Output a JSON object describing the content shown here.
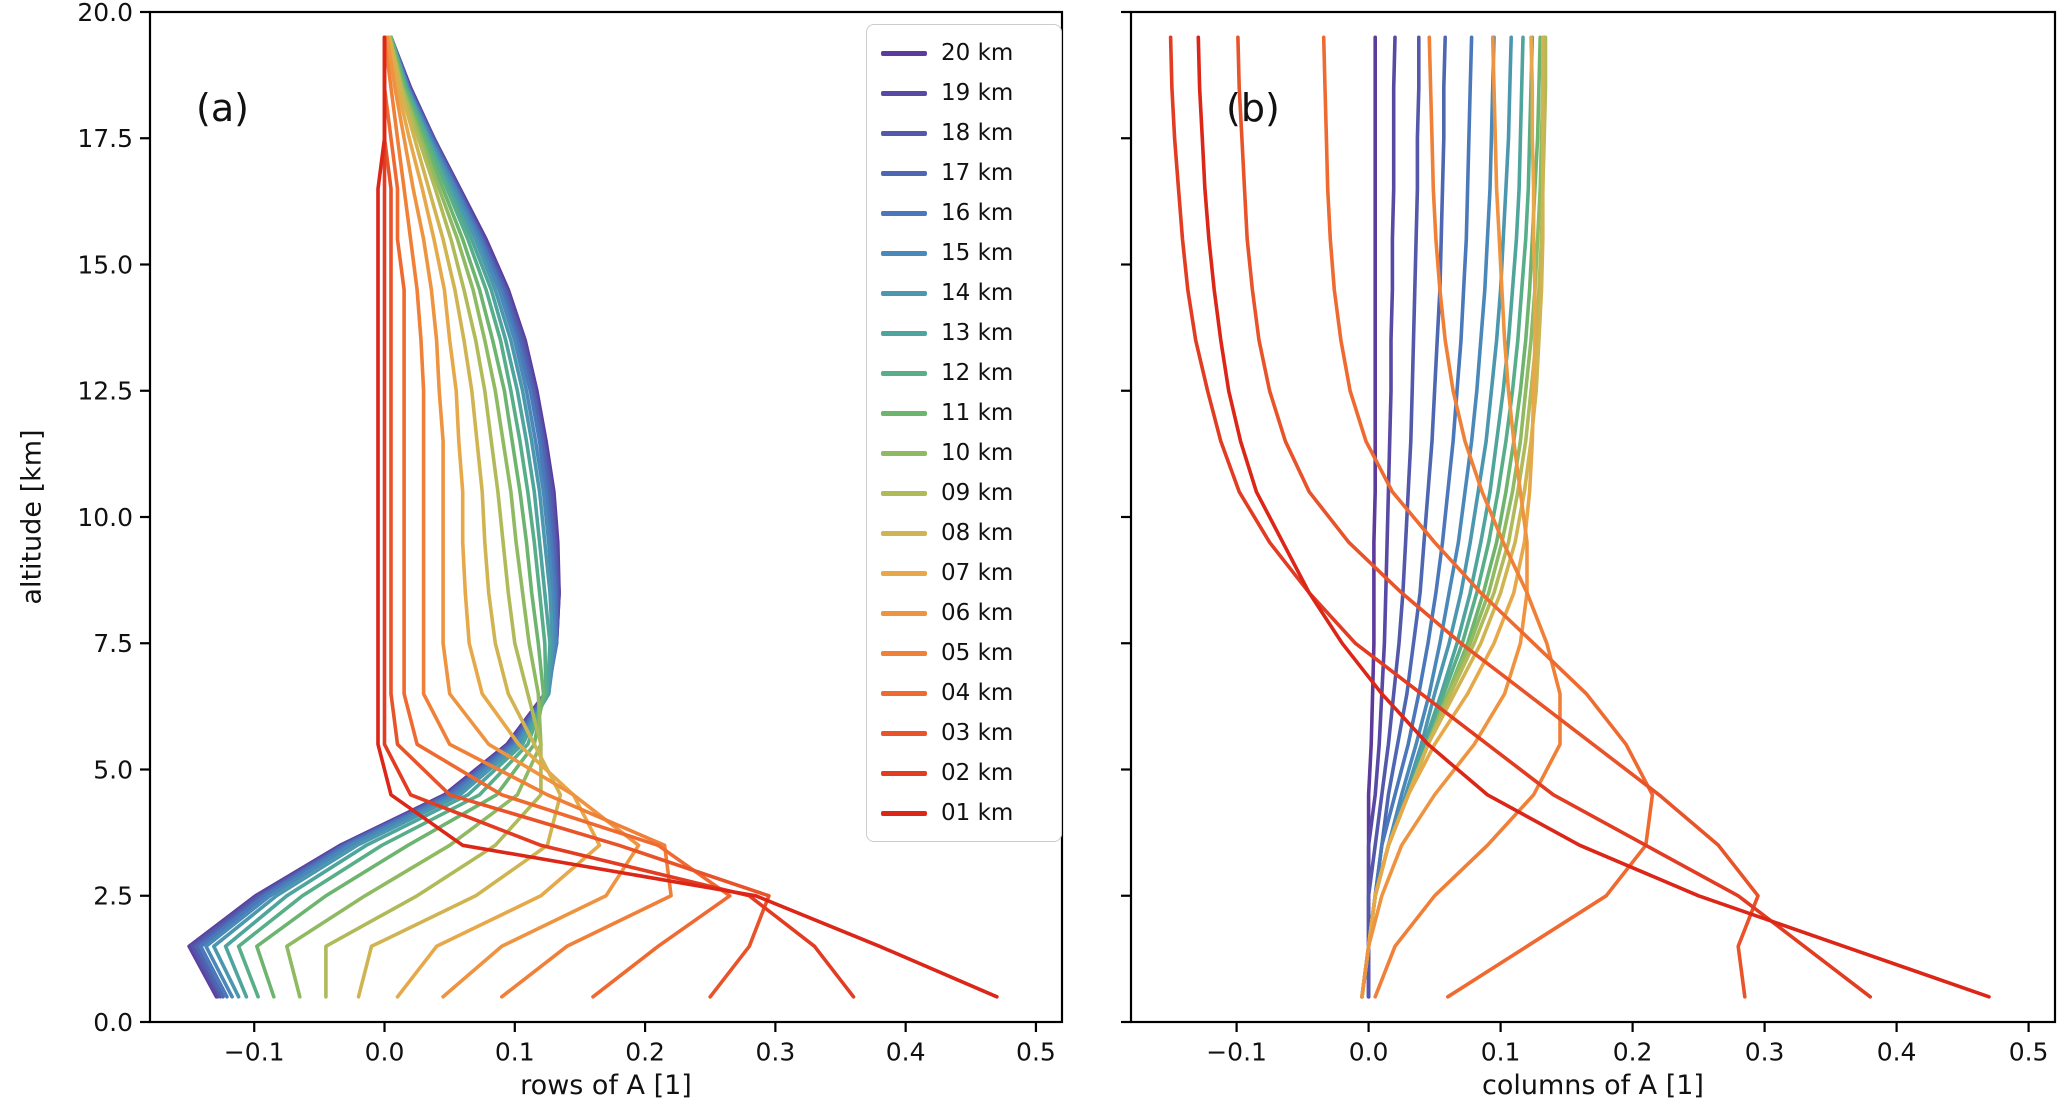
{
  "figure": {
    "background": "#ffffff",
    "text_color": "#111111",
    "spine_color": "#000000"
  },
  "chart_data": {
    "type": "line",
    "ylabel": "altitude [km]",
    "ylim": [
      0,
      20
    ],
    "yticks": [
      0,
      2.5,
      5,
      7.5,
      10,
      12.5,
      15,
      17.5,
      20
    ],
    "ytick_labels": [
      "0.0",
      "2.5",
      "5.0",
      "7.5",
      "10.0",
      "12.5",
      "15.0",
      "17.5",
      "20.0"
    ],
    "altitude_km": [
      0.5,
      1.5,
      2.5,
      3.5,
      4.5,
      5.5,
      6.5,
      7.5,
      8.5,
      9.5,
      10.5,
      11.5,
      12.5,
      13.5,
      14.5,
      15.5,
      16.5,
      17.5,
      18.5,
      19.5
    ],
    "levels": [
      {
        "label": "01 km",
        "color": "#db2618"
      },
      {
        "label": "02 km",
        "color": "#e23c22"
      },
      {
        "label": "03 km",
        "color": "#e9532a"
      },
      {
        "label": "04 km",
        "color": "#ef6a31"
      },
      {
        "label": "05 km",
        "color": "#f07f38"
      },
      {
        "label": "06 km",
        "color": "#ee9440"
      },
      {
        "label": "07 km",
        "color": "#e6a849"
      },
      {
        "label": "08 km",
        "color": "#d0b451"
      },
      {
        "label": "09 km",
        "color": "#b1ba59"
      },
      {
        "label": "10 km",
        "color": "#8fba61"
      },
      {
        "label": "11 km",
        "color": "#6db56f"
      },
      {
        "label": "12 km",
        "color": "#58ae88"
      },
      {
        "label": "13 km",
        "color": "#4fa49e"
      },
      {
        "label": "14 km",
        "color": "#4b97af"
      },
      {
        "label": "15 km",
        "color": "#4a88ba"
      },
      {
        "label": "16 km",
        "color": "#4b78ba"
      },
      {
        "label": "17 km",
        "color": "#4e67b2"
      },
      {
        "label": "18 km",
        "color": "#5358ab"
      },
      {
        "label": "19 km",
        "color": "#5849a4"
      },
      {
        "label": "20 km",
        "color": "#5d3b9c"
      }
    ],
    "matrix_A": [
      [
        0.47,
        0.38,
        0.285,
        0.06,
        0.005,
        -0.005,
        -0.005,
        -0.005,
        -0.005,
        -0.005,
        -0.005,
        -0.005,
        -0.005,
        -0.005,
        -0.005,
        -0.005,
        -0.005,
        0.0,
        0.0,
        0.0
      ],
      [
        0.36,
        0.33,
        0.28,
        0.12,
        0.02,
        0.0,
        0.0,
        0.0,
        0.0,
        0.0,
        0.0,
        0.0,
        0.0,
        0.0,
        0.0,
        0.0,
        0.0,
        0.0,
        0.0,
        0.0
      ],
      [
        0.25,
        0.28,
        0.295,
        0.18,
        0.05,
        0.01,
        0.005,
        0.005,
        0.005,
        0.005,
        0.005,
        0.005,
        0.005,
        0.005,
        0.005,
        0.005,
        0.005,
        0.0,
        0.0,
        0.0
      ],
      [
        0.16,
        0.21,
        0.265,
        0.21,
        0.09,
        0.025,
        0.015,
        0.015,
        0.015,
        0.015,
        0.015,
        0.015,
        0.015,
        0.015,
        0.015,
        0.01,
        0.01,
        0.005,
        0.0,
        0.0
      ],
      [
        0.09,
        0.14,
        0.22,
        0.215,
        0.125,
        0.05,
        0.03,
        0.03,
        0.03,
        0.03,
        0.03,
        0.03,
        0.03,
        0.028,
        0.025,
        0.02,
        0.015,
        0.01,
        0.005,
        0.0
      ],
      [
        0.045,
        0.09,
        0.17,
        0.195,
        0.145,
        0.08,
        0.05,
        0.045,
        0.045,
        0.045,
        0.045,
        0.045,
        0.042,
        0.04,
        0.036,
        0.03,
        0.022,
        0.015,
        0.008,
        0.002
      ],
      [
        0.01,
        0.04,
        0.12,
        0.165,
        0.145,
        0.103,
        0.075,
        0.065,
        0.062,
        0.06,
        0.06,
        0.057,
        0.055,
        0.05,
        0.046,
        0.038,
        0.029,
        0.019,
        0.01,
        0.003
      ],
      [
        -0.02,
        -0.01,
        0.07,
        0.125,
        0.135,
        0.115,
        0.095,
        0.085,
        0.08,
        0.077,
        0.075,
        0.071,
        0.067,
        0.061,
        0.054,
        0.045,
        0.034,
        0.023,
        0.012,
        0.004
      ],
      [
        -0.045,
        -0.045,
        0.025,
        0.085,
        0.12,
        0.12,
        0.11,
        0.1,
        0.095,
        0.091,
        0.087,
        0.082,
        0.077,
        0.07,
        0.061,
        0.051,
        0.039,
        0.026,
        0.013,
        0.004
      ],
      [
        -0.065,
        -0.075,
        -0.015,
        0.05,
        0.102,
        0.12,
        0.118,
        0.111,
        0.106,
        0.101,
        0.097,
        0.091,
        0.085,
        0.077,
        0.068,
        0.056,
        0.042,
        0.028,
        0.014,
        0.004
      ],
      [
        -0.085,
        -0.098,
        -0.045,
        0.018,
        0.086,
        0.115,
        0.122,
        0.118,
        0.113,
        0.109,
        0.104,
        0.098,
        0.092,
        0.083,
        0.073,
        0.06,
        0.045,
        0.03,
        0.015,
        0.005
      ],
      [
        -0.097,
        -0.112,
        -0.063,
        -0.002,
        0.073,
        0.11,
        0.124,
        0.123,
        0.119,
        0.115,
        0.11,
        0.104,
        0.097,
        0.089,
        0.078,
        0.064,
        0.048,
        0.032,
        0.016,
        0.005
      ],
      [
        -0.106,
        -0.122,
        -0.075,
        -0.014,
        0.064,
        0.106,
        0.125,
        0.127,
        0.123,
        0.119,
        0.115,
        0.109,
        0.102,
        0.093,
        0.082,
        0.067,
        0.05,
        0.033,
        0.017,
        0.005
      ],
      [
        -0.112,
        -0.131,
        -0.083,
        -0.021,
        0.058,
        0.103,
        0.126,
        0.129,
        0.127,
        0.123,
        0.119,
        0.113,
        0.106,
        0.097,
        0.085,
        0.07,
        0.052,
        0.034,
        0.017,
        0.005
      ],
      [
        -0.117,
        -0.137,
        -0.088,
        -0.026,
        0.054,
        0.101,
        0.126,
        0.131,
        0.129,
        0.126,
        0.122,
        0.116,
        0.109,
        0.1,
        0.088,
        0.072,
        0.054,
        0.035,
        0.018,
        0.005
      ],
      [
        -0.121,
        -0.141,
        -0.092,
        -0.029,
        0.051,
        0.099,
        0.125,
        0.132,
        0.131,
        0.128,
        0.124,
        0.119,
        0.112,
        0.102,
        0.09,
        0.074,
        0.055,
        0.036,
        0.018,
        0.005
      ],
      [
        -0.124,
        -0.144,
        -0.094,
        -0.031,
        0.049,
        0.097,
        0.125,
        0.132,
        0.132,
        0.13,
        0.126,
        0.121,
        0.114,
        0.104,
        0.092,
        0.075,
        0.056,
        0.037,
        0.019,
        0.005
      ],
      [
        -0.126,
        -0.147,
        -0.096,
        -0.032,
        0.048,
        0.096,
        0.124,
        0.132,
        0.133,
        0.131,
        0.128,
        0.122,
        0.115,
        0.106,
        0.093,
        0.076,
        0.057,
        0.037,
        0.019,
        0.005
      ],
      [
        -0.128,
        -0.149,
        -0.098,
        -0.033,
        0.047,
        0.095,
        0.124,
        0.132,
        0.134,
        0.132,
        0.129,
        0.123,
        0.116,
        0.107,
        0.094,
        0.077,
        0.057,
        0.038,
        0.019,
        0.005
      ],
      [
        -0.129,
        -0.15,
        -0.099,
        -0.034,
        0.046,
        0.094,
        0.123,
        0.132,
        0.134,
        0.133,
        0.13,
        0.124,
        0.117,
        0.108,
        0.095,
        0.078,
        0.058,
        0.038,
        0.02,
        0.005
      ]
    ],
    "panels": [
      {
        "annotation": "(a)",
        "xlabel": "rows of A [1]",
        "mode": "rows",
        "xlim": [
          -0.18,
          0.52
        ],
        "xticks": [
          -0.1,
          0.0,
          0.1,
          0.2,
          0.3,
          0.4,
          0.5
        ],
        "xtick_labels": [
          "−0.1",
          "0.0",
          "0.1",
          "0.2",
          "0.3",
          "0.4",
          "0.5"
        ],
        "show_ytick_labels": true,
        "legend": true
      },
      {
        "annotation": "(b)",
        "xlabel": "columns of A [1]",
        "mode": "columns",
        "xlim": [
          -0.18,
          0.52
        ],
        "xticks": [
          -0.1,
          0.0,
          0.1,
          0.2,
          0.3,
          0.4,
          0.5
        ],
        "xtick_labels": [
          "−0.1",
          "0.0",
          "0.1",
          "0.2",
          "0.3",
          "0.4",
          "0.5"
        ],
        "show_ytick_labels": false,
        "legend": false
      }
    ],
    "legend_position": "upper right inside panel a, entries 20 km (top) to 01 km (bottom)",
    "grid": false
  }
}
